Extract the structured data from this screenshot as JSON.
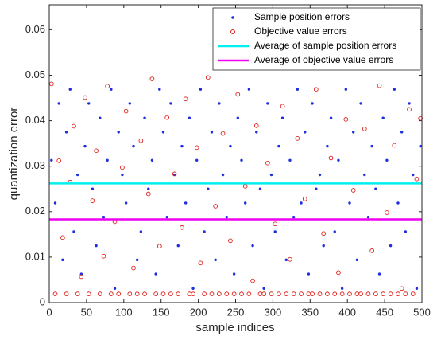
{
  "chart_data": {
    "type": "scatter",
    "xlabel": "sample indices",
    "ylabel": "quantization error",
    "xlim": [
      0,
      500
    ],
    "xticks": [
      0,
      50,
      100,
      150,
      200,
      250,
      300,
      350,
      400,
      450,
      500
    ],
    "ylim": [
      0,
      0.0655
    ],
    "yticks": [
      0,
      0.01,
      0.02,
      0.03,
      0.04,
      0.05,
      0.06
    ],
    "legend": "upper right",
    "x": [
      3,
      8,
      13,
      18,
      23,
      28,
      33,
      38,
      43,
      48,
      53,
      58,
      63,
      68,
      73,
      78,
      83,
      88,
      93,
      98,
      103,
      108,
      113,
      118,
      123,
      128,
      133,
      138,
      143,
      148,
      153,
      158,
      163,
      168,
      173,
      178,
      183,
      188,
      193,
      198,
      203,
      208,
      213,
      218,
      223,
      228,
      233,
      238,
      243,
      248,
      253,
      258,
      263,
      268,
      273,
      278,
      283,
      288,
      293,
      298,
      303,
      308,
      313,
      318,
      323,
      328,
      333,
      338,
      343,
      348,
      353,
      358,
      363,
      368,
      373,
      378,
      383,
      388,
      393,
      398,
      403,
      408,
      413,
      418,
      423,
      428,
      433,
      438,
      443,
      448,
      453,
      458,
      463,
      468,
      473,
      478,
      483,
      488,
      493,
      498
    ],
    "series": [
      {
        "name": "Sample position errors",
        "color": "#1f2fe0",
        "marker": "dot",
        "values": [
          0.0313,
          0.0219,
          0.0438,
          0.0094,
          0.0375,
          0.0469,
          0.0156,
          0.0281,
          0.0063,
          0.0344,
          0.0438,
          0.025,
          0.0125,
          0.0406,
          0.0188,
          0.0313,
          0.0469,
          0.0031,
          0.0375,
          0.0281,
          0.0219,
          0.0438,
          0.0344,
          0.0094,
          0.0156,
          0.0406,
          0.025,
          0.0313,
          0.0063,
          0.0469,
          0.0375,
          0.0188,
          0.0438,
          0.0281,
          0.0125,
          0.0344,
          0.0219,
          0.0406,
          0.0031,
          0.0313,
          0.0469,
          0.0156,
          0.025,
          0.0375,
          0.0094,
          0.0438,
          0.0281,
          0.0188,
          0.0344,
          0.0063,
          0.0406,
          0.0313,
          0.0219,
          0.0469,
          0.0125,
          0.0375,
          0.025,
          0.0031,
          0.0438,
          0.0281,
          0.0156,
          0.0344,
          0.0406,
          0.0094,
          0.0313,
          0.0188,
          0.0469,
          0.0219,
          0.0375,
          0.0063,
          0.0438,
          0.025,
          0.0281,
          0.0125,
          0.0344,
          0.0406,
          0.0156,
          0.0313,
          0.0031,
          0.0469,
          0.0219,
          0.0375,
          0.0094,
          0.0438,
          0.0281,
          0.0188,
          0.0344,
          0.025,
          0.0063,
          0.0406,
          0.0313,
          0.0125,
          0.0469,
          0.0219,
          0.0375,
          0.0156,
          0.0438,
          0.0281,
          0.0031,
          0.0344
        ]
      },
      {
        "name": "Objective value errors",
        "color": "#e0201a",
        "marker": "circle",
        "values": [
          0.0481,
          0.0019,
          0.0312,
          0.0143,
          0.0019,
          0.0265,
          0.0388,
          0.0019,
          0.0057,
          0.0451,
          0.0019,
          0.0224,
          0.0334,
          0.0019,
          0.0102,
          0.0476,
          0.0019,
          0.0178,
          0.0019,
          0.0297,
          0.0421,
          0.0019,
          0.0076,
          0.0019,
          0.0356,
          0.0019,
          0.0239,
          0.0492,
          0.0019,
          0.0124,
          0.0019,
          0.0407,
          0.0019,
          0.0283,
          0.0019,
          0.0165,
          0.0448,
          0.0019,
          0.0019,
          0.0341,
          0.0087,
          0.0019,
          0.0495,
          0.0019,
          0.0212,
          0.0019,
          0.0372,
          0.0019,
          0.0136,
          0.0019,
          0.0458,
          0.0019,
          0.0256,
          0.0019,
          0.0048,
          0.0389,
          0.0019,
          0.0019,
          0.0307,
          0.0019,
          0.0173,
          0.0019,
          0.0432,
          0.0019,
          0.0095,
          0.0019,
          0.0361,
          0.0019,
          0.0228,
          0.0019,
          0.0019,
          0.0469,
          0.0019,
          0.0152,
          0.0019,
          0.0318,
          0.0019,
          0.0066,
          0.0019,
          0.0403,
          0.0019,
          0.0247,
          0.0019,
          0.0019,
          0.0382,
          0.0019,
          0.0114,
          0.0019,
          0.0477,
          0.0019,
          0.0198,
          0.0019,
          0.0346,
          0.0019,
          0.0031,
          0.0019,
          0.0425,
          0.0019,
          0.0272,
          0.0405
        ]
      }
    ],
    "reference_lines": [
      {
        "name": "Average of sample position errors",
        "color": "#00f0f0",
        "value": 0.0262
      },
      {
        "name": "Average of objective value errors",
        "color": "#f000f0",
        "value": 0.0183
      }
    ]
  }
}
